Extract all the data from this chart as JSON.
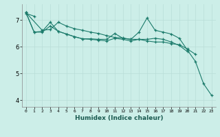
{
  "xlabel": "Humidex (Indice chaleur)",
  "bg_color": "#cceee8",
  "grid_color": "#b8ddd8",
  "line_color": "#1a7a6a",
  "x_values": [
    0,
    1,
    2,
    3,
    4,
    5,
    6,
    7,
    8,
    9,
    10,
    11,
    12,
    13,
    14,
    15,
    16,
    17,
    18,
    19,
    20,
    21,
    22,
    23
  ],
  "series": [
    [
      7.25,
      7.15,
      null,
      null,
      null,
      null,
      null,
      null,
      null,
      null,
      null,
      null,
      null,
      null,
      null,
      null,
      null,
      null,
      null,
      null,
      null,
      null,
      null,
      null
    ],
    [
      7.28,
      null,
      6.62,
      6.65,
      6.92,
      6.78,
      6.68,
      6.62,
      6.55,
      6.5,
      6.42,
      6.35,
      6.33,
      6.28,
      6.28,
      6.22,
      6.18,
      6.18,
      6.12,
      6.08,
      5.92,
      5.72,
      null,
      null
    ],
    [
      7.28,
      6.55,
      6.55,
      6.78,
      6.58,
      6.48,
      6.38,
      6.3,
      6.3,
      6.28,
      6.28,
      6.5,
      6.32,
      6.28,
      6.55,
      7.08,
      6.62,
      6.55,
      6.48,
      6.32,
      5.88,
      5.45,
      4.62,
      4.18
    ],
    [
      7.28,
      6.55,
      6.58,
      6.92,
      6.58,
      6.48,
      6.38,
      6.3,
      6.28,
      6.25,
      6.22,
      6.32,
      6.28,
      6.22,
      6.28,
      6.28,
      6.32,
      6.28,
      6.18,
      6.05,
      5.82,
      null,
      null,
      null
    ]
  ],
  "ylim": [
    3.75,
    7.6
  ],
  "yticks": [
    4,
    5,
    6,
    7
  ],
  "xticks": [
    0,
    1,
    2,
    3,
    4,
    5,
    6,
    7,
    8,
    9,
    10,
    11,
    12,
    13,
    14,
    15,
    16,
    17,
    18,
    19,
    20,
    21,
    22,
    23
  ],
  "markersize": 3.5,
  "linewidth": 0.8
}
